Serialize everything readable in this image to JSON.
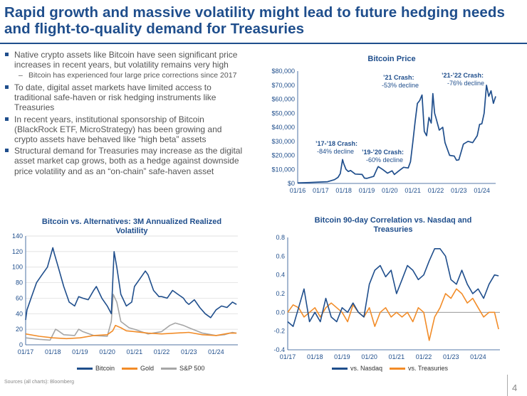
{
  "header": {
    "title": "Rapid growth and massive volatility might lead to future hedging needs and flight-to-quality demand for Treasuries"
  },
  "bullets": [
    {
      "text": "Native crypto assets like Bitcoin have seen significant price increases in recent years, but volatility remains very high",
      "sub": "Bitcoin has experienced four large price corrections since 2017"
    },
    {
      "text": "To date, digital asset markets have limited access to traditional safe-haven or risk hedging instruments like Treasuries"
    },
    {
      "text": "In recent years, institutional sponsorship of Bitcoin (BlackRock ETF, MicroStrategy) has been growing and crypto assets have behaved like “high beta” assets"
    },
    {
      "text": "Structural demand for Treasuries may increase as the digital asset market cap grows, both as a hedge against downside price volatility and as an “on-chain” safe-haven asset"
    }
  ],
  "footer": {
    "sources": "Sources (all charts): Bloomberg",
    "page": "4"
  },
  "colors": {
    "navy": "#1f4e8c",
    "orange": "#f28c28",
    "gray": "#a6a6a6"
  },
  "chart_data": [
    {
      "type": "line",
      "title": "Bitcoin Price",
      "xlabel": "",
      "ylabel": "",
      "x_ticks": [
        "01/16",
        "01/17",
        "01/18",
        "01/19",
        "01/20",
        "01/21",
        "01/22",
        "01/23",
        "01/24"
      ],
      "xlim": [
        2016.0,
        2024.6
      ],
      "y_ticks": [
        "$0",
        "$10,000",
        "$20,000",
        "$30,000",
        "$40,000",
        "$50,000",
        "$60,000",
        "$70,000",
        "$80,000"
      ],
      "ylim": [
        0,
        80000
      ],
      "series": [
        {
          "name": "Bitcoin",
          "x": [
            2016.0,
            2016.5,
            2017.0,
            2017.3,
            2017.6,
            2017.75,
            2017.85,
            2017.95,
            2018.0,
            2018.1,
            2018.2,
            2018.3,
            2018.5,
            2018.8,
            2018.9,
            2019.0,
            2019.3,
            2019.45,
            2019.5,
            2019.7,
            2019.9,
            2020.1,
            2020.2,
            2020.4,
            2020.6,
            2020.8,
            2020.9,
            2021.0,
            2021.1,
            2021.2,
            2021.3,
            2021.4,
            2021.5,
            2021.6,
            2021.7,
            2021.8,
            2021.87,
            2021.95,
            2022.0,
            2022.15,
            2022.3,
            2022.4,
            2022.6,
            2022.8,
            2022.9,
            2023.0,
            2023.2,
            2023.4,
            2023.6,
            2023.8,
            2023.9,
            2024.0,
            2024.1,
            2024.2,
            2024.3,
            2024.4,
            2024.5,
            2024.6
          ],
          "values": [
            430,
            650,
            1000,
            1200,
            2700,
            4300,
            7000,
            17000,
            14000,
            10000,
            8500,
            9200,
            6700,
            6400,
            3800,
            3600,
            5000,
            10500,
            12000,
            9800,
            7300,
            9000,
            6400,
            9000,
            11500,
            11000,
            15500,
            29000,
            44000,
            57000,
            59000,
            63000,
            37000,
            34000,
            47000,
            43000,
            64000,
            50000,
            47000,
            38000,
            40000,
            29000,
            20000,
            19500,
            16500,
            16800,
            28000,
            30000,
            29000,
            34000,
            42000,
            42500,
            50000,
            70000,
            62000,
            66000,
            57000,
            62000
          ]
        }
      ],
      "annotations": [
        {
          "title": "’17-’18 Crash:",
          "text": "-84% decline"
        },
        {
          "title": "’19-’20 Crash:",
          "text": "-60% decline"
        },
        {
          "title": "’21 Crash:",
          "text": "-53% decline"
        },
        {
          "title": "’21-’22 Crash:",
          "text": "-76% decline"
        }
      ]
    },
    {
      "type": "line",
      "title": "Bitcoin vs. Alternatives: 3M Annualized Realized Volatility",
      "x_ticks": [
        "01/17",
        "01/18",
        "01/19",
        "01/20",
        "01/21",
        "01/22",
        "01/23",
        "01/24"
      ],
      "xlim": [
        2017.0,
        2024.8
      ],
      "y_ticks": [
        "0",
        "20",
        "40",
        "60",
        "80",
        "100",
        "120",
        "140"
      ],
      "ylim": [
        0,
        140
      ],
      "series": [
        {
          "name": "Bitcoin",
          "x": [
            2017.0,
            2017.05,
            2017.2,
            2017.4,
            2017.6,
            2017.8,
            2018.0,
            2018.05,
            2018.2,
            2018.4,
            2018.6,
            2018.8,
            2018.95,
            2019.1,
            2019.3,
            2019.5,
            2019.6,
            2019.8,
            2020.0,
            2020.15,
            2020.25,
            2020.35,
            2020.5,
            2020.7,
            2020.9,
            2021.0,
            2021.2,
            2021.4,
            2021.5,
            2021.7,
            2021.9,
            2022.0,
            2022.2,
            2022.4,
            2022.6,
            2022.8,
            2022.9,
            2023.0,
            2023.2,
            2023.4,
            2023.6,
            2023.8,
            2024.0,
            2024.2,
            2024.4,
            2024.6,
            2024.75
          ],
          "values": [
            32,
            45,
            60,
            80,
            90,
            100,
            125,
            118,
            100,
            75,
            55,
            50,
            62,
            60,
            58,
            70,
            75,
            60,
            50,
            40,
            120,
            100,
            65,
            50,
            55,
            75,
            85,
            95,
            90,
            70,
            62,
            62,
            60,
            70,
            65,
            60,
            55,
            52,
            58,
            48,
            40,
            35,
            45,
            50,
            48,
            55,
            52
          ]
        },
        {
          "name": "Gold",
          "x": [
            2017.0,
            2017.5,
            2018.0,
            2018.5,
            2019.0,
            2019.5,
            2020.0,
            2020.2,
            2020.3,
            2020.5,
            2020.7,
            2021.0,
            2021.5,
            2022.0,
            2022.5,
            2023.0,
            2023.5,
            2024.0,
            2024.5,
            2024.75
          ],
          "values": [
            14,
            11,
            9,
            8,
            9,
            12,
            13,
            18,
            25,
            22,
            18,
            17,
            15,
            14,
            15,
            16,
            13,
            12,
            15,
            15
          ]
        },
        {
          "name": "S&P 500",
          "x": [
            2017.0,
            2017.5,
            2017.9,
            2018.1,
            2018.2,
            2018.4,
            2018.8,
            2018.95,
            2019.1,
            2019.5,
            2020.0,
            2020.15,
            2020.22,
            2020.35,
            2020.5,
            2020.8,
            2021.0,
            2021.5,
            2022.0,
            2022.3,
            2022.5,
            2022.8,
            2023.0,
            2023.5,
            2024.0,
            2024.3,
            2024.6,
            2024.75
          ],
          "values": [
            9,
            7,
            6,
            20,
            18,
            13,
            12,
            20,
            17,
            12,
            11,
            30,
            65,
            55,
            30,
            22,
            20,
            14,
            17,
            25,
            28,
            25,
            22,
            15,
            12,
            13,
            16,
            15
          ]
        }
      ]
    },
    {
      "type": "line",
      "title": "Bitcoin 90-day Correlation vs. Nasdaq and Treasuries",
      "x_ticks": [
        "01/17",
        "01/18",
        "01/19",
        "01/20",
        "01/21",
        "01/22",
        "01/23",
        "01/24"
      ],
      "xlim": [
        2017.0,
        2024.8
      ],
      "y_ticks": [
        "-0.4",
        "-0.2",
        "0.0",
        "0.2",
        "0.4",
        "0.6",
        "0.8"
      ],
      "ylim": [
        -0.4,
        0.8
      ],
      "series": [
        {
          "name": "vs. Nasdaq",
          "x": [
            2017.0,
            2017.2,
            2017.4,
            2017.6,
            2017.8,
            2018.0,
            2018.2,
            2018.4,
            2018.6,
            2018.8,
            2019.0,
            2019.2,
            2019.4,
            2019.6,
            2019.8,
            2020.0,
            2020.2,
            2020.4,
            2020.6,
            2020.8,
            2021.0,
            2021.2,
            2021.4,
            2021.6,
            2021.8,
            2022.0,
            2022.2,
            2022.4,
            2022.6,
            2022.8,
            2023.0,
            2023.2,
            2023.4,
            2023.6,
            2023.8,
            2024.0,
            2024.2,
            2024.4,
            2024.6,
            2024.75
          ],
          "values": [
            -0.1,
            -0.15,
            0.05,
            0.25,
            -0.1,
            0.0,
            -0.1,
            0.15,
            -0.05,
            -0.1,
            0.05,
            0.0,
            0.1,
            0.0,
            -0.05,
            0.3,
            0.45,
            0.5,
            0.38,
            0.45,
            0.2,
            0.35,
            0.5,
            0.45,
            0.35,
            0.4,
            0.55,
            0.68,
            0.68,
            0.6,
            0.35,
            0.3,
            0.45,
            0.3,
            0.2,
            0.25,
            0.15,
            0.3,
            0.4,
            0.39
          ]
        },
        {
          "name": "vs. Treasuries",
          "x": [
            2017.0,
            2017.2,
            2017.4,
            2017.6,
            2017.8,
            2018.0,
            2018.2,
            2018.4,
            2018.6,
            2018.8,
            2019.0,
            2019.2,
            2019.4,
            2019.6,
            2019.8,
            2020.0,
            2020.2,
            2020.4,
            2020.6,
            2020.8,
            2021.0,
            2021.2,
            2021.4,
            2021.6,
            2021.8,
            2022.0,
            2022.2,
            2022.4,
            2022.6,
            2022.8,
            2023.0,
            2023.2,
            2023.4,
            2023.6,
            2023.8,
            2024.0,
            2024.2,
            2024.4,
            2024.6,
            2024.75
          ],
          "values": [
            0.0,
            0.08,
            0.05,
            -0.05,
            0.0,
            0.05,
            -0.05,
            0.05,
            0.1,
            0.05,
            0.0,
            -0.1,
            0.08,
            0.0,
            -0.05,
            0.05,
            -0.15,
            0.0,
            0.05,
            -0.05,
            0.0,
            -0.05,
            0.0,
            -0.1,
            0.05,
            0.0,
            -0.3,
            -0.05,
            0.05,
            0.2,
            0.15,
            0.25,
            0.2,
            0.1,
            0.15,
            0.05,
            -0.05,
            0.0,
            0.0,
            -0.18
          ]
        }
      ]
    }
  ]
}
